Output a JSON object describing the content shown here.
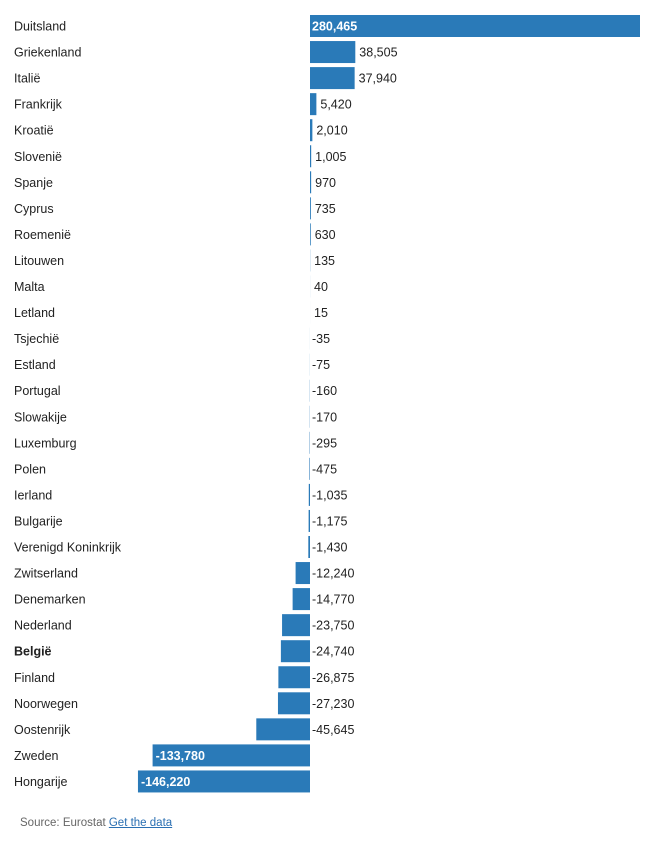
{
  "chart_data": {
    "type": "bar",
    "orientation": "horizontal",
    "title": "",
    "xlabel": "",
    "ylabel": "",
    "bar_color": "#2a7ab8",
    "highlight_category": "België",
    "categories": [
      "Duitsland",
      "Griekenland",
      "Italië",
      "Frankrijk",
      "Kroatië",
      "Slovenië",
      "Spanje",
      "Cyprus",
      "Roemenië",
      "Litouwen",
      "Malta",
      "Letland",
      "Tsjechië",
      "Estland",
      "Portugal",
      "Slowakije",
      "Luxemburg",
      "Polen",
      "Ierland",
      "Bulgarije",
      "Verenigd Koninkrijk",
      "Zwitserland",
      "Denemarken",
      "Nederland",
      "België",
      "Finland",
      "Noorwegen",
      "Oostenrijk",
      "Zweden",
      "Hongarije"
    ],
    "values": [
      280465,
      38505,
      37940,
      5420,
      2010,
      1005,
      970,
      735,
      630,
      135,
      40,
      15,
      -35,
      -75,
      -160,
      -170,
      -295,
      -475,
      -1035,
      -1175,
      -1430,
      -12240,
      -14770,
      -23750,
      -24740,
      -26875,
      -27230,
      -45645,
      -133780,
      -146220
    ],
    "value_labels": [
      "280,465",
      "38,505",
      "37,940",
      "5,420",
      "2,010",
      "1,005",
      "970",
      "735",
      "630",
      "135",
      "40",
      "15",
      "-35",
      "-75",
      "-160",
      "-170",
      "-295",
      "-475",
      "-1,035",
      "-1,175",
      "-1,430",
      "-12,240",
      "-14,770",
      "-23,750",
      "-24,740",
      "-26,875",
      "-27,230",
      "-45,645",
      "-133,780",
      "-146,220"
    ]
  },
  "footer": {
    "source_text": "Source: Eurostat",
    "link_text": "Get the data"
  }
}
